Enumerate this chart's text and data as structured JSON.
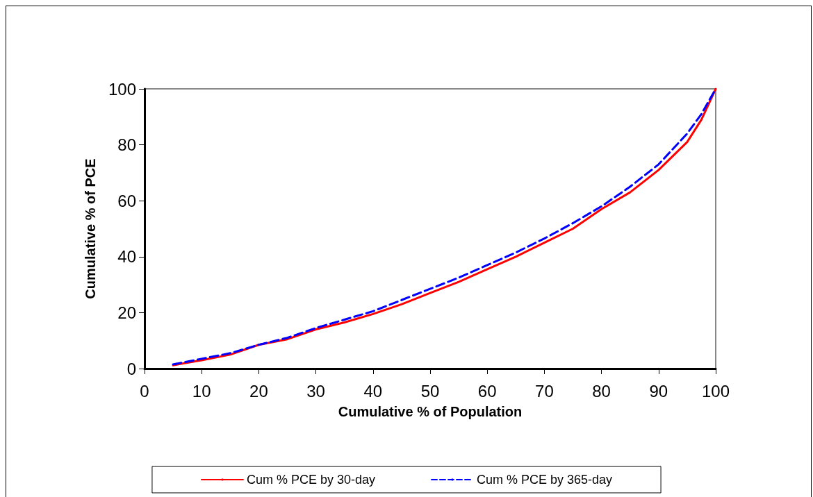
{
  "chart_data": {
    "type": "line",
    "xlabel": "Cumulative % of Population",
    "ylabel": "Cumulative % of PCE",
    "xlim": [
      0,
      100
    ],
    "xticks": [
      0,
      10,
      20,
      30,
      40,
      50,
      60,
      70,
      80,
      90,
      100
    ],
    "ylim": [
      0,
      100
    ],
    "yticks": [
      0,
      20,
      40,
      60,
      80,
      100
    ],
    "grid": false,
    "legend": "bottom",
    "marker": "none",
    "series": [
      {
        "name": "Cum % PCE by 30-day",
        "color": "#ff0000",
        "line_style": "solid",
        "x": [
          5,
          10,
          15,
          20,
          25,
          30,
          35,
          40,
          45,
          50,
          55,
          60,
          65,
          70,
          75,
          80,
          85,
          90,
          95,
          97.5,
          100
        ],
        "values": [
          1.2,
          3,
          5,
          8.5,
          10.5,
          14,
          16.5,
          19.5,
          23,
          27,
          31,
          35.5,
          40,
          45,
          50,
          57,
          63,
          71,
          81,
          89,
          100
        ]
      },
      {
        "name": "Cum % PCE by 365-day",
        "color": "#0000ff",
        "line_style": "dashed",
        "x": [
          5,
          10,
          15,
          20,
          25,
          30,
          35,
          40,
          45,
          50,
          55,
          60,
          65,
          70,
          75,
          80,
          85,
          90,
          95,
          97.5,
          100
        ],
        "values": [
          1.5,
          3.5,
          5.5,
          8.5,
          11,
          14.5,
          17.5,
          20.5,
          24.5,
          28.5,
          32.5,
          37,
          41.5,
          46.5,
          52,
          58,
          65,
          73,
          84,
          91,
          100
        ]
      }
    ]
  }
}
